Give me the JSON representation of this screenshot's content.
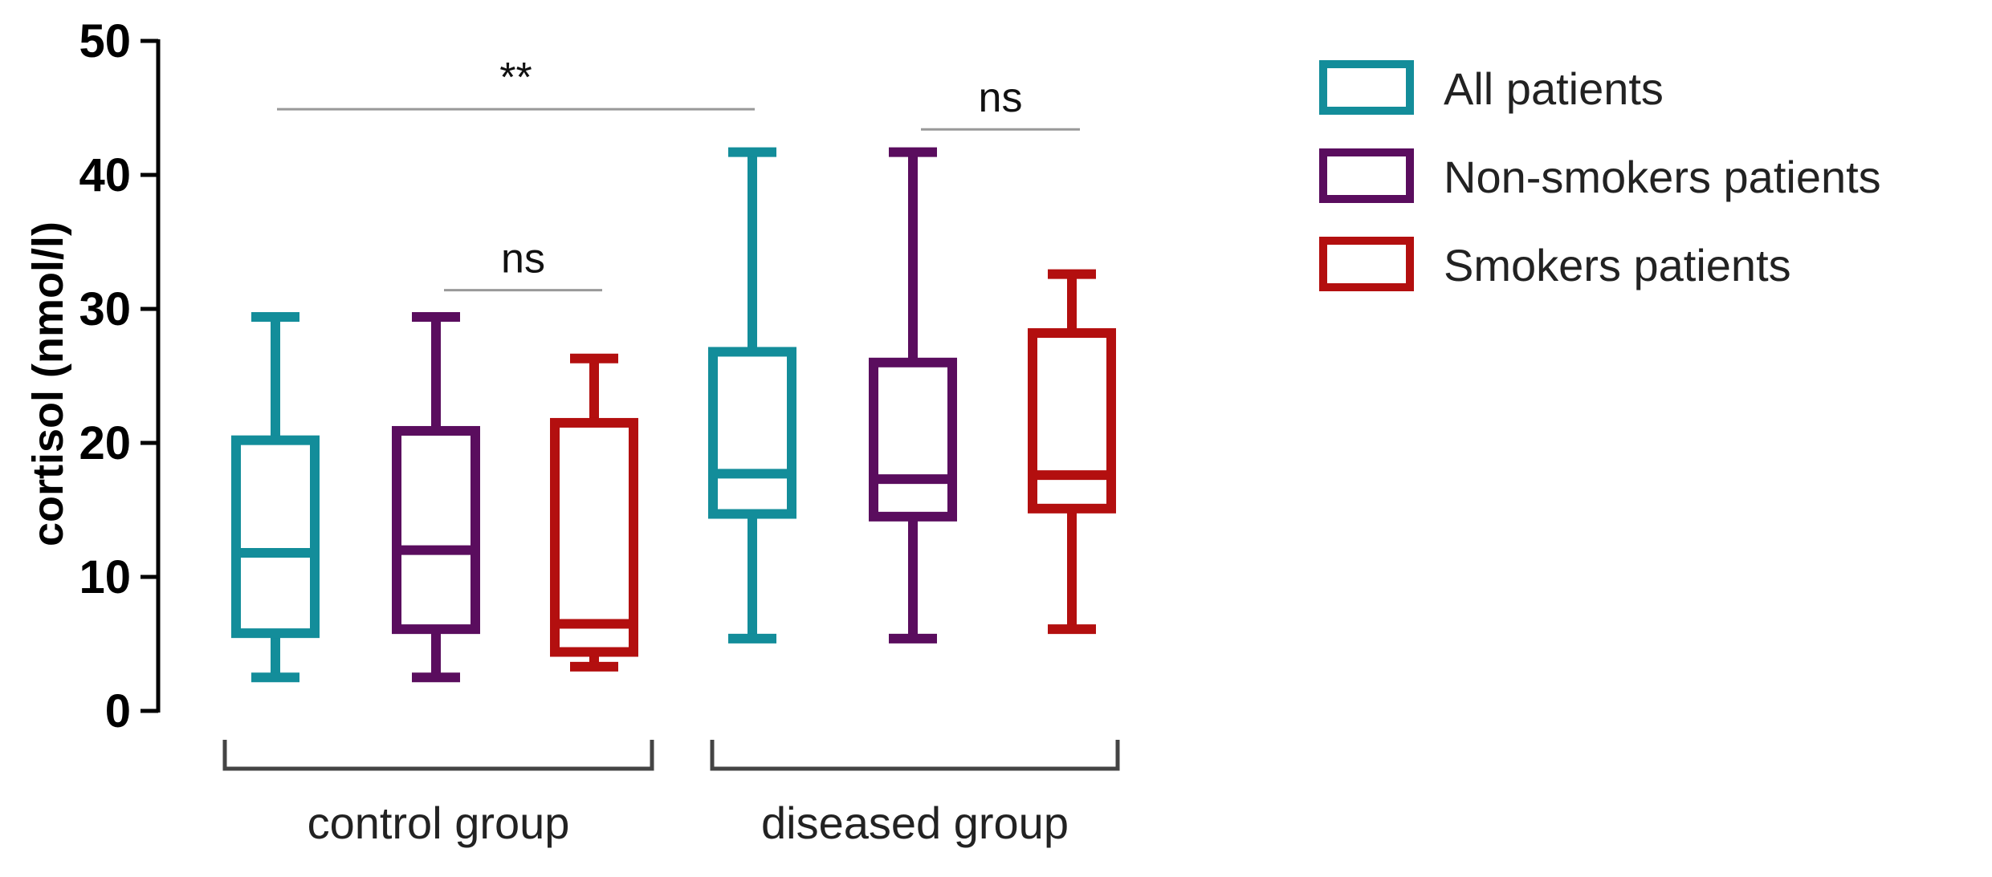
{
  "chart_data": {
    "type": "boxplot",
    "ylabel": "cortisol (nmol/l)",
    "ylim": [
      0,
      50
    ],
    "yticks": [
      0,
      10,
      20,
      30,
      40,
      50
    ],
    "groups": [
      "control group",
      "diseased group"
    ],
    "series": [
      {
        "name": "All patients",
        "color": "#138d9a"
      },
      {
        "name": "Non-smokers patients",
        "color": "#5a0d5e"
      },
      {
        "name": "Smokers patients",
        "color": "#b30f0f"
      }
    ],
    "boxes": [
      {
        "group": "control group",
        "series": "All patients",
        "min": 2.5,
        "q1": 5.8,
        "median": 11.8,
        "q3": 20.2,
        "max": 29.4
      },
      {
        "group": "control group",
        "series": "Non-smokers patients",
        "min": 2.5,
        "q1": 6.1,
        "median": 12.0,
        "q3": 20.9,
        "max": 29.4
      },
      {
        "group": "control group",
        "series": "Smokers patients",
        "min": 3.3,
        "q1": 4.4,
        "median": 6.5,
        "q3": 21.5,
        "max": 26.3
      },
      {
        "group": "diseased group",
        "series": "All patients",
        "min": 5.4,
        "q1": 14.7,
        "median": 17.7,
        "q3": 26.8,
        "max": 41.7
      },
      {
        "group": "diseased group",
        "series": "Non-smokers patients",
        "min": 5.4,
        "q1": 14.5,
        "median": 17.3,
        "q3": 26.0,
        "max": 41.7
      },
      {
        "group": "diseased group",
        "series": "Smokers patients",
        "min": 6.1,
        "q1": 15.1,
        "median": 17.6,
        "q3": 28.2,
        "max": 32.6
      }
    ],
    "significance": [
      {
        "label": "**",
        "from_box": 0,
        "to_box": 3,
        "y": 44.9
      },
      {
        "label": "ns",
        "from_box": 4,
        "to_box": 5,
        "y": 43.4
      },
      {
        "label": "ns",
        "from_box": 1,
        "to_box": 2,
        "y": 31.4
      }
    ]
  }
}
